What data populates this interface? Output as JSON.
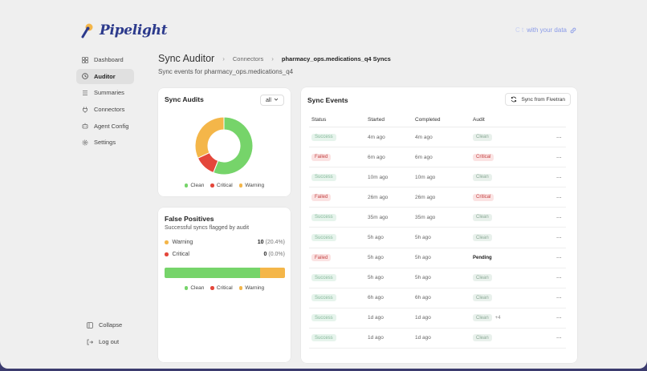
{
  "app": {
    "name": "Pipelight",
    "chat_dim": "C  t",
    "chat_label": "with your data"
  },
  "sidebar": {
    "items": [
      {
        "label": "Dashboard",
        "icon": "grid-icon"
      },
      {
        "label": "Auditor",
        "icon": "clock-icon",
        "active": true
      },
      {
        "label": "Summaries",
        "icon": "list-icon"
      },
      {
        "label": "Connectors",
        "icon": "plug-icon"
      },
      {
        "label": "Agent Config",
        "icon": "robot-icon"
      },
      {
        "label": "Settings",
        "icon": "gear-icon"
      }
    ],
    "collapse": "Collapse",
    "logout": "Log out"
  },
  "header": {
    "title": "Sync Auditor",
    "breadcrumb_1": "Connectors",
    "breadcrumb_2": "pharmacy_ops.medications_q4 Syncs",
    "subtitle": "Sync events for pharmacy_ops.medications_q4"
  },
  "audits": {
    "title": "Sync Audits",
    "filter": "all",
    "legend": [
      "Clean",
      "Critical",
      "Warning"
    ]
  },
  "false_positives": {
    "title": "False Positives",
    "subtitle": "Successful syncs flagged by audit",
    "warning_label": "Warning",
    "warning_count": "10",
    "warning_pct": "(20.4%)",
    "critical_label": "Critical",
    "critical_count": "0",
    "critical_pct": "(0.0%)",
    "bar_clean_pct": 79.6,
    "bar_warning_pct": 20.4,
    "legend": [
      "Clean",
      "Critical",
      "Warning"
    ]
  },
  "colors": {
    "clean": "#76d46a",
    "critical": "#e4473b",
    "warning": "#f4b649"
  },
  "chart_data": {
    "type": "pie",
    "labels": [
      "Clean",
      "Critical",
      "Warning"
    ],
    "values": [
      56,
      12,
      32
    ]
  },
  "events": {
    "title": "Sync Events",
    "sync_button": "Sync from Fivetran",
    "columns": [
      "Status",
      "Started",
      "Completed",
      "Audit"
    ],
    "rows": [
      {
        "status": "Success",
        "started": "4m ago",
        "completed": "4m ago",
        "audit": "Clean"
      },
      {
        "status": "Failed",
        "started": "6m ago",
        "completed": "6m ago",
        "audit": "Critical"
      },
      {
        "status": "Success",
        "started": "10m ago",
        "completed": "10m ago",
        "audit": "Clean"
      },
      {
        "status": "Failed",
        "started": "26m ago",
        "completed": "26m ago",
        "audit": "Critical"
      },
      {
        "status": "Success",
        "started": "35m ago",
        "completed": "35m ago",
        "audit": "Clean"
      },
      {
        "status": "Success",
        "started": "5h ago",
        "completed": "5h ago",
        "audit": "Clean"
      },
      {
        "status": "Failed",
        "started": "5h ago",
        "completed": "5h ago",
        "audit": "Pending"
      },
      {
        "status": "Success",
        "started": "5h ago",
        "completed": "5h ago",
        "audit": "Clean"
      },
      {
        "status": "Success",
        "started": "6h ago",
        "completed": "6h ago",
        "audit": "Clean"
      },
      {
        "status": "Success",
        "started": "1d ago",
        "completed": "1d ago",
        "audit": "Clean",
        "extra": "+4"
      },
      {
        "status": "Success",
        "started": "1d ago",
        "completed": "1d ago",
        "audit": "Clean"
      }
    ]
  }
}
